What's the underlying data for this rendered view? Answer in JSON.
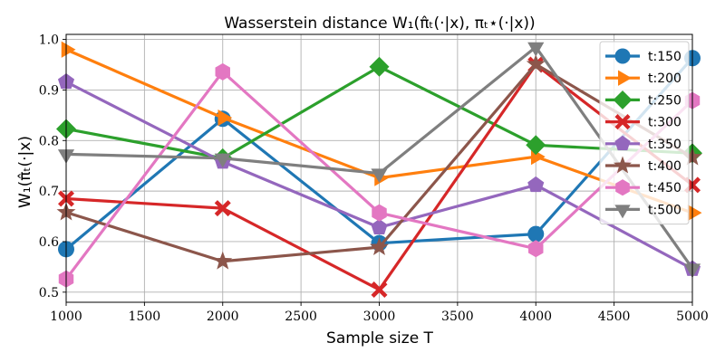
{
  "chart_data": {
    "type": "line",
    "title": "Wasserstein distance W₁(π̂ₜ(·|x), πₜ⋆(·|x))",
    "xlabel": "Sample size T",
    "ylabel": "W₁(π̂ₜ(·|x)",
    "x": [
      1000,
      2000,
      3000,
      4000,
      5000
    ],
    "xlim": [
      1000,
      5000
    ],
    "ylim": [
      0.48,
      1.01
    ],
    "xticks": [
      1000,
      1500,
      2000,
      2500,
      3000,
      3500,
      4000,
      4500,
      5000
    ],
    "yticks": [
      0.5,
      0.6,
      0.7,
      0.8,
      0.9,
      1.0
    ],
    "xtick_labels": [
      "1000",
      "1500",
      "2000",
      "2500",
      "3000",
      "3500",
      "4000",
      "4500",
      "5000"
    ],
    "ytick_labels": [
      "0.5",
      "0.6",
      "0.7",
      "0.8",
      "0.9",
      "1.0"
    ],
    "grid": true,
    "legend_position": "top-right",
    "series": [
      {
        "name": "t:150",
        "values": [
          0.585,
          0.843,
          0.597,
          0.615,
          0.963
        ],
        "color": "#1f77b4",
        "marker": "circle"
      },
      {
        "name": "t:200",
        "values": [
          0.98,
          0.845,
          0.726,
          0.768,
          0.657
        ],
        "color": "#ff7f0e",
        "marker": "triangle-right"
      },
      {
        "name": "t:250",
        "values": [
          0.823,
          0.765,
          0.946,
          0.791,
          0.775
        ],
        "color": "#2ca02c",
        "marker": "diamond"
      },
      {
        "name": "t:300",
        "values": [
          0.685,
          0.666,
          0.505,
          0.95,
          0.712
        ],
        "color": "#d62728",
        "marker": "x"
      },
      {
        "name": "t:350",
        "values": [
          0.916,
          0.758,
          0.628,
          0.712,
          0.546
        ],
        "color": "#9467bd",
        "marker": "pentagon"
      },
      {
        "name": "t:400",
        "values": [
          0.658,
          0.561,
          0.589,
          0.951,
          0.767
        ],
        "color": "#8c564b",
        "marker": "star"
      },
      {
        "name": "t:450",
        "values": [
          0.526,
          0.936,
          0.657,
          0.586,
          0.879
        ],
        "color": "#e377c2",
        "marker": "hexagon"
      },
      {
        "name": "t:500",
        "values": [
          0.773,
          0.765,
          0.735,
          0.985,
          0.547
        ],
        "color": "#7f7f7f",
        "marker": "triangle-down"
      }
    ]
  }
}
